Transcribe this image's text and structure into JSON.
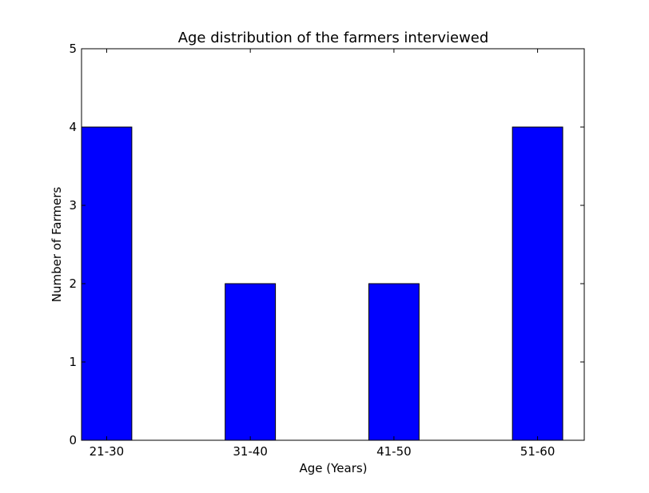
{
  "chart_data": {
    "type": "bar",
    "title": "Age distribution of the farmers interviewed",
    "xlabel": "Age (Years)",
    "ylabel": "Number of Farmers",
    "categories": [
      "21-30",
      "31-40",
      "41-50",
      "51-60"
    ],
    "values": [
      4,
      2,
      2,
      4
    ],
    "ylim": [
      0,
      5
    ],
    "yticks": [
      0,
      1,
      2,
      3,
      4,
      5
    ],
    "grid": false,
    "bar_color": "#0000ff",
    "edge_color": "#000000"
  }
}
